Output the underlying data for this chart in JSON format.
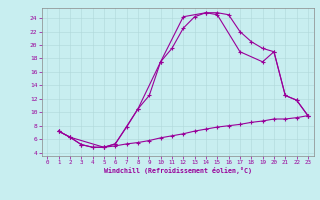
{
  "xlabel": "Windchill (Refroidissement éolien,°C)",
  "bg_color": "#c8eef0",
  "line_color": "#990099",
  "grid_color": "#b0d8da",
  "xlim": [
    -0.5,
    23.5
  ],
  "ylim": [
    3.5,
    25.5
  ],
  "xticks": [
    0,
    1,
    2,
    3,
    4,
    5,
    6,
    7,
    8,
    9,
    10,
    11,
    12,
    13,
    14,
    15,
    16,
    17,
    18,
    19,
    20,
    21,
    22,
    23
  ],
  "yticks": [
    4,
    6,
    8,
    10,
    12,
    14,
    16,
    18,
    20,
    22,
    24
  ],
  "line1_x": [
    1,
    2,
    3,
    4,
    5,
    6,
    7,
    8,
    9,
    10,
    11,
    12,
    13,
    14,
    15,
    16,
    17,
    18,
    19,
    20,
    21,
    22,
    23
  ],
  "line1_y": [
    7.2,
    6.3,
    5.2,
    4.8,
    4.8,
    5.3,
    7.8,
    10.5,
    12.5,
    17.5,
    19.5,
    22.5,
    24.2,
    24.8,
    24.8,
    24.5,
    22.0,
    20.5,
    19.5,
    19.0,
    12.5,
    11.8,
    9.5
  ],
  "line2_x": [
    1,
    2,
    5,
    6,
    8,
    10,
    12,
    14,
    15,
    17,
    19,
    20,
    21,
    22,
    23
  ],
  "line2_y": [
    7.2,
    6.3,
    4.8,
    5.3,
    10.5,
    17.5,
    24.2,
    24.8,
    24.5,
    19.0,
    17.5,
    19.0,
    12.5,
    11.8,
    9.5
  ],
  "line3_x": [
    1,
    2,
    3,
    4,
    5,
    6,
    7,
    8,
    9,
    10,
    11,
    12,
    13,
    14,
    15,
    16,
    17,
    18,
    19,
    20,
    21,
    22,
    23
  ],
  "line3_y": [
    7.2,
    6.3,
    5.2,
    4.8,
    4.8,
    5.0,
    5.3,
    5.5,
    5.8,
    6.2,
    6.5,
    6.8,
    7.2,
    7.5,
    7.8,
    8.0,
    8.2,
    8.5,
    8.7,
    9.0,
    9.0,
    9.2,
    9.5
  ]
}
